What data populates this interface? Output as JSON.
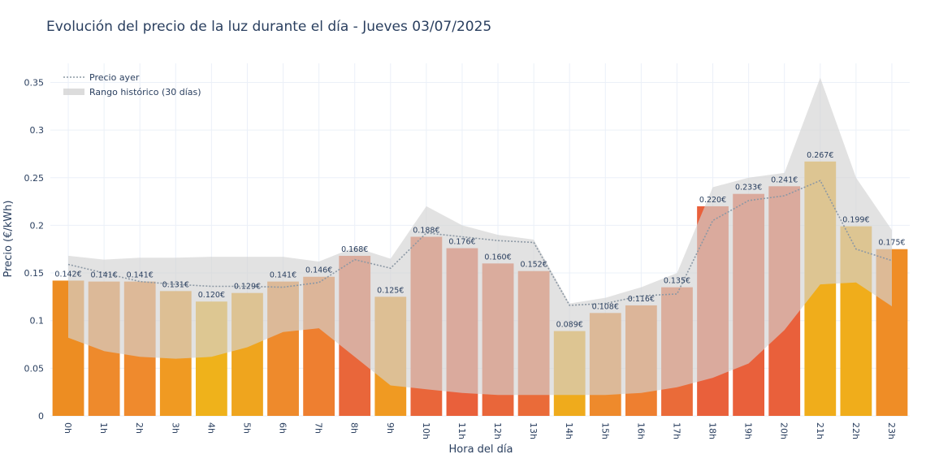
{
  "chart_data": {
    "type": "bar",
    "title": "Evolución del precio de la luz durante el día - Jueves 03/07/2025",
    "xlabel": "Hora del día",
    "ylabel": "Precio (€/kWh)",
    "ylim": [
      0,
      0.37
    ],
    "yticks": [
      0,
      0.05,
      0.1,
      0.15,
      0.2,
      0.25,
      0.3,
      0.35
    ],
    "ytick_labels": [
      "0",
      "0.05",
      "0.1",
      "0.15",
      "0.2",
      "0.25",
      "0.3",
      "0.35"
    ],
    "grid": true,
    "legend_position": "top-left",
    "categories": [
      "0h",
      "1h",
      "2h",
      "3h",
      "4h",
      "5h",
      "6h",
      "7h",
      "8h",
      "9h",
      "10h",
      "11h",
      "12h",
      "13h",
      "14h",
      "15h",
      "16h",
      "17h",
      "18h",
      "19h",
      "20h",
      "21h",
      "22h",
      "23h"
    ],
    "values": [
      0.142,
      0.141,
      0.141,
      0.131,
      0.12,
      0.129,
      0.141,
      0.146,
      0.168,
      0.125,
      0.188,
      0.176,
      0.16,
      0.152,
      0.089,
      0.108,
      0.116,
      0.135,
      0.22,
      0.233,
      0.241,
      0.267,
      0.199,
      0.175
    ],
    "data_labels": [
      "0.142€",
      "0.141€",
      "0.141€",
      "0.131€",
      "0.120€",
      "0.129€",
      "0.141€",
      "0.146€",
      "0.168€",
      "0.125€",
      "0.188€",
      "0.176€",
      "0.160€",
      "0.152€",
      "0.089€",
      "0.108€",
      "0.116€",
      "0.135€",
      "0.220€",
      "0.233€",
      "0.241€",
      "0.267€",
      "0.199€",
      "0.175€"
    ],
    "bar_colors": [
      "#ed8d22",
      "#ee8a2c",
      "#ef8a2d",
      "#f09a22",
      "#efb21b",
      "#efa51e",
      "#ee8a2c",
      "#ee7f30",
      "#e9663a",
      "#f09a22",
      "#e9663a",
      "#e9603b",
      "#e9663a",
      "#ea6b39",
      "#efab1c",
      "#ee8a2c",
      "#ee7f30",
      "#ea6b39",
      "#e9603b",
      "#e9603b",
      "#e9603b",
      "#f0ad1b",
      "#f0ad1b",
      "#ef8d26"
    ],
    "series": [
      {
        "name": "Precio ayer",
        "style": "dotted-line",
        "color": "#8c98a4",
        "values": [
          0.159,
          0.15,
          0.141,
          0.138,
          0.136,
          0.136,
          0.135,
          0.14,
          0.164,
          0.155,
          0.192,
          0.188,
          0.184,
          0.182,
          0.116,
          0.118,
          0.126,
          0.128,
          0.205,
          0.226,
          0.231,
          0.247,
          0.175,
          0.163
        ]
      },
      {
        "name": "Rango histórico (30 días)",
        "style": "band",
        "color": "#d3d3d3",
        "upper": [
          0.168,
          0.164,
          0.166,
          0.166,
          0.167,
          0.167,
          0.167,
          0.162,
          0.177,
          0.165,
          0.22,
          0.2,
          0.19,
          0.185,
          0.118,
          0.124,
          0.135,
          0.15,
          0.24,
          0.25,
          0.255,
          0.355,
          0.25,
          0.195
        ],
        "lower": [
          0.082,
          0.068,
          0.062,
          0.06,
          0.062,
          0.072,
          0.088,
          0.092,
          0.062,
          0.032,
          0.028,
          0.024,
          0.022,
          0.022,
          0.022,
          0.022,
          0.024,
          0.03,
          0.04,
          0.055,
          0.09,
          0.138,
          0.14,
          0.115
        ]
      }
    ]
  }
}
